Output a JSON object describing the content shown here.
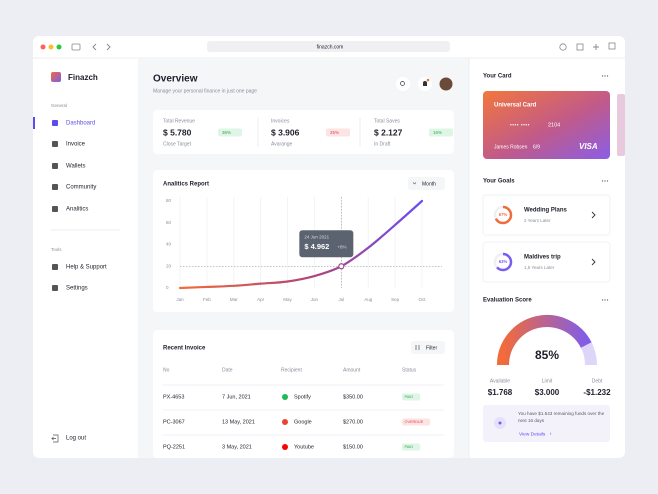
{
  "browser": {
    "url": "finazch.com"
  },
  "sidebar": {
    "brand": "Finazch",
    "general_label": "General",
    "general_items": [
      "Dashboard",
      "Invoice",
      "Wallets",
      "Community",
      "Analitics"
    ],
    "tools_label": "Tools",
    "tools_items": [
      "Help & Support",
      "Settings"
    ],
    "logout": "Log out"
  },
  "header": {
    "title": "Overview",
    "subtitle": "Manage your personal finance in just one page"
  },
  "stats": [
    {
      "label": "Total Revenue",
      "value": "$ 5.780",
      "change": "36%",
      "note": "Close Target",
      "color": "#2fa84f",
      "bg": "#dff5e6"
    },
    {
      "label": "Invoices",
      "value": "$ 3.906",
      "change": "25%",
      "note": "Avarange",
      "color": "#e0454f",
      "bg": "#fde3e4"
    },
    {
      "label": "Total Saves",
      "value": "$ 2.127",
      "change": "16%",
      "note": "In Draft",
      "color": "#2fa84f",
      "bg": "#dff5e6"
    }
  ],
  "analytics": {
    "title": "Analitics Report",
    "period": "Month",
    "chart": {
      "type": "line",
      "categories": [
        "Jan",
        "Feb",
        "Mar",
        "Apr",
        "May",
        "Jun",
        "Jul",
        "Aug",
        "Sep",
        "Oct"
      ],
      "values": [
        0,
        1,
        2,
        4,
        6,
        11,
        20,
        37,
        58,
        80
      ],
      "ylim": [
        0,
        80
      ],
      "yticks": [
        0,
        20,
        40,
        60,
        80
      ],
      "grid": true
    },
    "tooltip": {
      "date": "24 Jun 2021",
      "value": "$ 4.962",
      "change": "+8%"
    }
  },
  "invoice": {
    "title": "Recent Invoice",
    "filter": "Filter",
    "columns": [
      "No",
      "Date",
      "Recipient",
      "Amount",
      "Status"
    ],
    "rows": [
      {
        "no": "PX-4653",
        "date": "7 Jun, 2021",
        "recipient": "Spotify",
        "amount": "$350.00",
        "status": "PAID",
        "icon_color": "#1db954",
        "status_color": "#2fa84f",
        "status_bg": "#dff5e6"
      },
      {
        "no": "PC-3067",
        "date": "13 May, 2021",
        "recipient": "Google",
        "amount": "$270.00",
        "status": "OVERDUE",
        "icon_color": "#ea4335",
        "status_color": "#e0454f",
        "status_bg": "#fde3e4"
      },
      {
        "no": "PQ-2251",
        "date": "3 May, 2021",
        "recipient": "Youtube",
        "amount": "$150.00",
        "status": "PAID",
        "icon_color": "#ff0000",
        "status_color": "#2fa84f",
        "status_bg": "#dff5e6"
      }
    ]
  },
  "card": {
    "section": "Your Card",
    "name": "Universal Card",
    "masked": "•••• ••••",
    "last4": "2104",
    "holder": "James Robsen",
    "expiry": "6/9",
    "brand": "VISA"
  },
  "goals": {
    "title": "Your Goals",
    "items": [
      {
        "name": "Wedding Plans",
        "progress": {
          "value": 67,
          "label": "67%"
        },
        "due": "2 Years Later",
        "color": "#f26b3a"
      },
      {
        "name": "Maldives trip",
        "progress": {
          "value": 63,
          "label": "63%"
        },
        "due": "1,5 Years Later",
        "color": "#7b5cf0"
      }
    ]
  },
  "evaluation": {
    "title": "Evaluation Score",
    "score": {
      "value": 85,
      "label": "85%"
    },
    "stats": [
      {
        "label": "Available",
        "value": "$1.768"
      },
      {
        "label": "Limit",
        "value": "$3.000"
      },
      {
        "label": "Debt",
        "value": "-$1.232"
      }
    ],
    "note": "You have $1.543 remaining funds over the next 16 days",
    "link": "View Details"
  }
}
